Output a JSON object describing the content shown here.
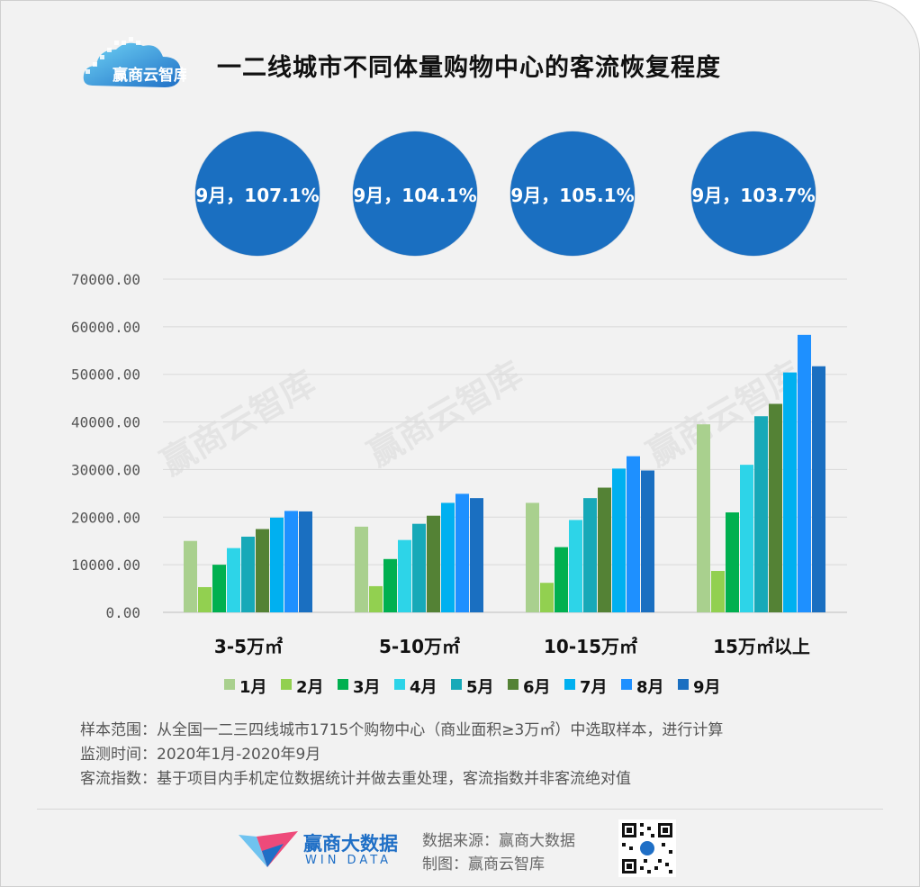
{
  "header": {
    "logo_text": "赢商云智库",
    "title": "一二线城市不同体量购物中心的客流恢复程度"
  },
  "circles": [
    {
      "label": "9月，107.1%"
    },
    {
      "label": "9月，104.1%"
    },
    {
      "label": "9月，105.1%"
    },
    {
      "label": "9月，103.7%"
    }
  ],
  "chart_data": {
    "type": "bar",
    "title": "一二线城市不同体量购物中心的客流恢复程度",
    "categories": [
      "3-5万㎡",
      "5-10万㎡",
      "10-15万㎡",
      "15万㎡以上"
    ],
    "ylim": [
      0,
      70000
    ],
    "yticks": [
      "0.00",
      "10000.00",
      "20000.00",
      "30000.00",
      "40000.00",
      "50000.00",
      "60000.00",
      "70000.00"
    ],
    "grid": true,
    "legend_position": "bottom",
    "series": [
      {
        "name": "1月",
        "color": "#a9d08e",
        "values": [
          15000,
          18000,
          23000,
          39500
        ]
      },
      {
        "name": "2月",
        "color": "#92d050",
        "values": [
          5300,
          5500,
          6200,
          8700
        ]
      },
      {
        "name": "3月",
        "color": "#00b050",
        "values": [
          10000,
          11200,
          13700,
          21000
        ]
      },
      {
        "name": "4月",
        "color": "#2dd4e8",
        "values": [
          13500,
          15200,
          19400,
          31000
        ]
      },
      {
        "name": "5月",
        "color": "#17a9b8",
        "values": [
          15900,
          18600,
          24000,
          41200
        ]
      },
      {
        "name": "6月",
        "color": "#548235",
        "values": [
          17500,
          20300,
          26200,
          43800
        ]
      },
      {
        "name": "7月",
        "color": "#00b0f0",
        "values": [
          19900,
          23000,
          30200,
          50400
        ]
      },
      {
        "name": "8月",
        "color": "#1e90ff",
        "values": [
          21300,
          24900,
          32800,
          58300
        ]
      },
      {
        "name": "9月",
        "color": "#1a6fc1",
        "values": [
          21200,
          24000,
          29800,
          51700
        ]
      }
    ]
  },
  "watermark": "赢商云智库",
  "notes": [
    "样本范围：从全国一二三四线城市1715个购物中心（商业面积≥3万㎡）中选取样本，进行计算",
    "监测时间：2020年1月-2020年9月",
    "客流指数：基于项目内手机定位数据统计并做去重处理，客流指数并非客流绝对值"
  ],
  "footer": {
    "brand_cn": "赢商大数据",
    "brand_en": "WIN DATA",
    "source": "数据来源：赢商大数据",
    "maker": "制图：赢商云智库"
  }
}
